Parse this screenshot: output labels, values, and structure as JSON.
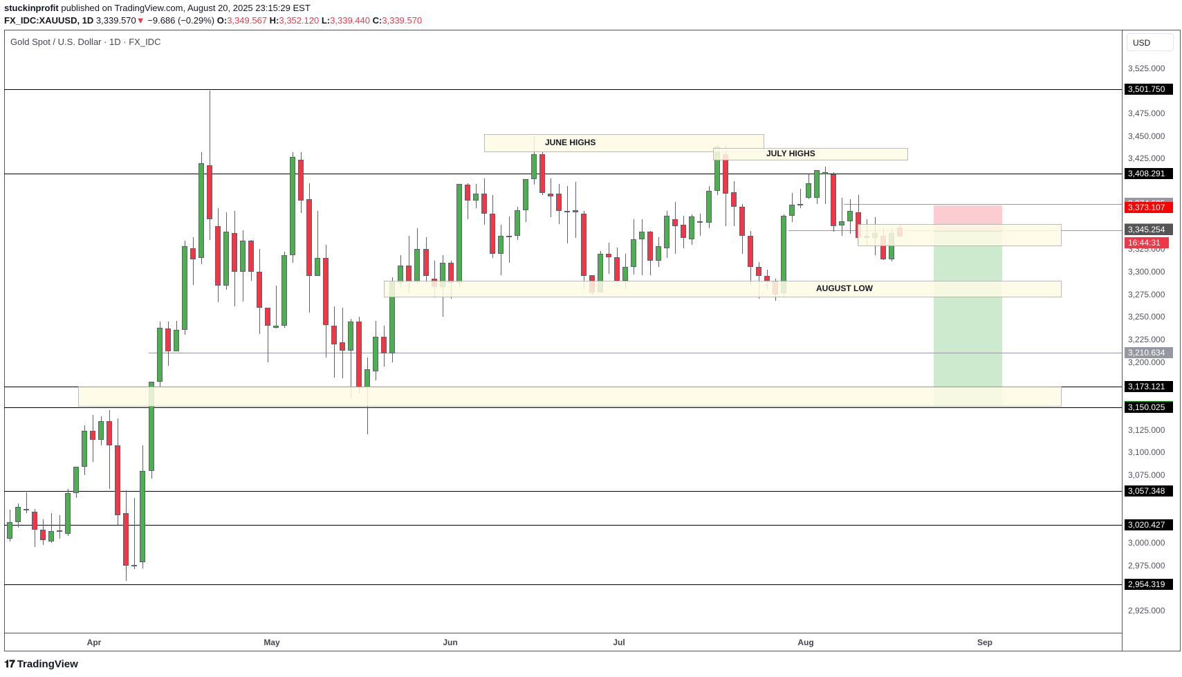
{
  "header": {
    "author": "stuckinprofit",
    "published_text": "published on TradingView.com, August 20, 2025 23:15:29 EST",
    "symbol": "FX_IDC:XAUUSD, 1D",
    "last": "3,339.570",
    "change": "−9.686 (−0.29%)",
    "change_arrow": "▼",
    "o_label": "O:",
    "o": "3,349.567",
    "h_label": "H:",
    "h": "3,352.120",
    "l_label": "L:",
    "l": "3,339.440",
    "c_label": "C:",
    "c": "3,339.570"
  },
  "pane_title": "Gold Spot / U.S. Dollar · 1D · FX_IDC",
  "currency_button": "USD",
  "logo_text": "TradingView",
  "colors": {
    "up": "#4caf50",
    "down": "#f23645",
    "zone_fill": "#fffbe6",
    "target": "#00a000",
    "stop": "#ff0000"
  },
  "annotations": {
    "june_highs": "JUNE HIGHS",
    "july_highs": "JULY HIGHS",
    "august_low": "AUGUST LOW"
  },
  "price_axis": {
    "ticks": [
      "3,525.000",
      "3,475.000",
      "3,450.000",
      "3,425.000",
      "3,325.000",
      "3,300.000",
      "3,275.000",
      "3,250.000",
      "3,225.000",
      "3,200.000",
      "3,125.000",
      "3,100.000",
      "3,075.000",
      "3,000.000",
      "2,975.000",
      "2,925.000"
    ],
    "tags": [
      {
        "value": "3,501.750",
        "bg": "#000000"
      },
      {
        "value": "3,408.291",
        "bg": "#000000"
      },
      {
        "value": "3,374.625",
        "bg": "#9598a1"
      },
      {
        "value": "3,373.107",
        "bg": "#ff0000"
      },
      {
        "value": "3,345.611",
        "bg": "#9598a1"
      },
      {
        "value": "3,345.254",
        "bg": "#555555"
      },
      {
        "value": "16:44:31",
        "bg": "#f23645"
      },
      {
        "value": "3,210.634",
        "bg": "#9598a1"
      },
      {
        "value": "3,173.121",
        "bg": "#000000"
      },
      {
        "value": "3,150.725",
        "bg": "#00a000"
      },
      {
        "value": "3,150.025",
        "bg": "#000000"
      },
      {
        "value": "3,057.348",
        "bg": "#000000"
      },
      {
        "value": "3,020.427",
        "bg": "#000000"
      },
      {
        "value": "2,954.319",
        "bg": "#000000"
      }
    ]
  },
  "time_axis": {
    "months": [
      "Apr",
      "May",
      "Jun",
      "Jul",
      "Aug",
      "Sep"
    ]
  },
  "chart_data": {
    "type": "candlestick",
    "title": "Gold Spot / U.S. Dollar · 1D · FX_IDC",
    "xlabel": "",
    "ylabel": "USD",
    "ylim": [
      2900,
      3545
    ],
    "x_labels": [
      "Apr",
      "May",
      "Jun",
      "Jul",
      "Aug",
      "Sep"
    ],
    "horizontal_levels": [
      3501.75,
      3408.291,
      3173.121,
      3150.025,
      3057.348,
      3020.427,
      2954.319
    ],
    "gray_levels": [
      3374.625,
      3345.611,
      3210.634
    ],
    "zones": [
      {
        "label": "JUNE HIGHS",
        "top": 3452,
        "bottom": 3432
      },
      {
        "label": "JULY HIGHS",
        "top": 3437,
        "bottom": 3423
      },
      {
        "label": "AUGUST LOW",
        "top": 3290,
        "bottom": 3272
      },
      {
        "label": "",
        "top": 3353,
        "bottom": 3328
      },
      {
        "label": "",
        "top": 3173,
        "bottom": 3151
      }
    ],
    "position": {
      "entry": 3345.254,
      "stop": 3373.107,
      "target": 3150.725
    },
    "ohlc": [
      [
        3005,
        3023,
        3002,
        3037
      ],
      [
        3023,
        3040,
        3017,
        3044
      ],
      [
        3038,
        3038,
        3033,
        3056
      ],
      [
        3035,
        3015,
        2996,
        3038
      ],
      [
        3015,
        3003,
        2998,
        3026
      ],
      [
        3002,
        3013,
        3000,
        3033
      ],
      [
        3014,
        3013,
        3005,
        3031
      ],
      [
        3010,
        3055,
        3008,
        3060
      ],
      [
        3055,
        3084,
        3050,
        3084
      ],
      [
        3084,
        3124,
        3075,
        3130
      ],
      [
        3124,
        3114,
        3090,
        3142
      ],
      [
        3114,
        3135,
        3108,
        3140
      ],
      [
        3135,
        3108,
        3060,
        3147
      ],
      [
        3108,
        3031,
        3020,
        3138
      ],
      [
        3033,
        2975,
        2958,
        3058
      ],
      [
        2975,
        2976,
        2971,
        3050
      ],
      [
        2979,
        3080,
        2972,
        3108
      ],
      [
        3080,
        3178,
        3071,
        3178
      ],
      [
        3178,
        3238,
        3172,
        3245
      ],
      [
        3237,
        3212,
        3196,
        3245
      ],
      [
        3212,
        3236,
        3213,
        3246
      ],
      [
        3236,
        3328,
        3230,
        3334
      ],
      [
        3326,
        3314,
        3285,
        3338
      ],
      [
        3315,
        3420,
        3308,
        3432
      ],
      [
        3418,
        3358,
        3335,
        3500
      ],
      [
        3350,
        3285,
        3266,
        3370
      ],
      [
        3285,
        3344,
        3280,
        3366
      ],
      [
        3343,
        3300,
        3262,
        3367
      ],
      [
        3300,
        3334,
        3267,
        3346
      ],
      [
        3334,
        3300,
        3290,
        3335
      ],
      [
        3300,
        3260,
        3231,
        3325
      ],
      [
        3260,
        3240,
        3200,
        3260
      ],
      [
        3238,
        3240,
        3237,
        3285
      ],
      [
        3240,
        3318,
        3238,
        3322
      ],
      [
        3318,
        3427,
        3310,
        3432
      ],
      [
        3424,
        3379,
        3365,
        3432
      ],
      [
        3380,
        3295,
        3255,
        3398
      ],
      [
        3295,
        3315,
        3300,
        3367
      ],
      [
        3315,
        3241,
        3205,
        3330
      ],
      [
        3240,
        3220,
        3183,
        3262
      ],
      [
        3222,
        3213,
        3182,
        3260
      ],
      [
        3213,
        3245,
        3160,
        3248
      ],
      [
        3245,
        3172,
        3165,
        3250
      ],
      [
        3172,
        3192,
        3120,
        3205
      ],
      [
        3190,
        3228,
        3180,
        3246
      ],
      [
        3228,
        3210,
        3195,
        3240
      ],
      [
        3210,
        3289,
        3200,
        3294
      ],
      [
        3288,
        3307,
        3282,
        3318
      ],
      [
        3307,
        3289,
        3277,
        3340
      ],
      [
        3289,
        3325,
        3286,
        3348
      ],
      [
        3325,
        3295,
        3287,
        3338
      ],
      [
        3292,
        3283,
        3272,
        3312
      ],
      [
        3283,
        3310,
        3250,
        3318
      ],
      [
        3310,
        3288,
        3270,
        3312
      ],
      [
        3288,
        3397,
        3283,
        3397
      ],
      [
        3396,
        3379,
        3358,
        3398
      ],
      [
        3379,
        3386,
        3370,
        3397
      ],
      [
        3386,
        3364,
        3352,
        3403
      ],
      [
        3364,
        3320,
        3315,
        3385
      ],
      [
        3320,
        3340,
        3296,
        3352
      ],
      [
        3340,
        3338,
        3310,
        3361
      ],
      [
        3340,
        3368,
        3335,
        3372
      ],
      [
        3368,
        3402,
        3355,
        3402
      ],
      [
        3402,
        3430,
        3396,
        3450
      ],
      [
        3430,
        3387,
        3385,
        3432
      ],
      [
        3386,
        3383,
        3360,
        3403
      ],
      [
        3386,
        3367,
        3353,
        3397
      ],
      [
        3367,
        3367,
        3331,
        3395
      ],
      [
        3368,
        3366,
        3337,
        3399
      ],
      [
        3364,
        3295,
        3281,
        3367
      ],
      [
        3296,
        3277,
        3274,
        3284
      ],
      [
        3277,
        3320,
        3280,
        3323
      ],
      [
        3320,
        3316,
        3298,
        3332
      ],
      [
        3316,
        3290,
        3287,
        3327
      ],
      [
        3290,
        3305,
        3281,
        3320
      ],
      [
        3305,
        3336,
        3297,
        3358
      ],
      [
        3336,
        3344,
        3296,
        3358
      ],
      [
        3344,
        3312,
        3296,
        3345
      ],
      [
        3312,
        3328,
        3305,
        3338
      ],
      [
        3326,
        3362,
        3315,
        3367
      ],
      [
        3358,
        3350,
        3320,
        3377
      ],
      [
        3352,
        3337,
        3326,
        3362
      ],
      [
        3336,
        3361,
        3330,
        3363
      ],
      [
        3356,
        3355,
        3340,
        3364
      ],
      [
        3354,
        3389,
        3348,
        3395
      ],
      [
        3389,
        3438,
        3385,
        3440
      ],
      [
        3430,
        3386,
        3350,
        3440
      ],
      [
        3388,
        3372,
        3350,
        3400
      ],
      [
        3372,
        3340,
        3320,
        3375
      ],
      [
        3340,
        3305,
        3285,
        3345
      ],
      [
        3305,
        3295,
        3270,
        3311
      ],
      [
        3295,
        3289,
        3280,
        3302
      ],
      [
        3290,
        3275,
        3268,
        3292
      ],
      [
        3276,
        3362,
        3272,
        3363
      ],
      [
        3362,
        3374,
        3355,
        3387
      ],
      [
        3374,
        3375,
        3370,
        3392
      ],
      [
        3382,
        3398,
        3380,
        3408
      ],
      [
        3382,
        3412,
        3375,
        3412
      ],
      [
        3408,
        3410,
        3375,
        3416
      ],
      [
        3408,
        3350,
        3344,
        3410
      ],
      [
        3351,
        3356,
        3340,
        3382
      ],
      [
        3356,
        3367,
        3342,
        3380
      ],
      [
        3366,
        3337,
        3330,
        3385
      ],
      [
        3337,
        3340,
        3330,
        3358
      ],
      [
        3337,
        3343,
        3318,
        3360
      ],
      [
        3340,
        3314,
        3313,
        3348
      ],
      [
        3314,
        3343,
        3311,
        3348
      ],
      [
        3349,
        3339,
        3339,
        3352
      ]
    ]
  }
}
